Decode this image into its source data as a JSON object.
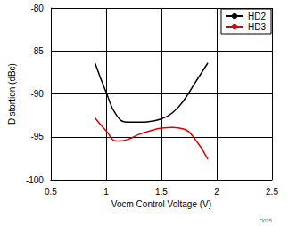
{
  "chart_data": {
    "type": "line",
    "x_label": "Vocm Control Voltage (V)",
    "y_label": "Distortion (dBc)",
    "x": [
      0.9,
      1.0,
      1.1,
      1.2,
      1.3,
      1.4,
      1.5,
      1.6,
      1.7,
      1.8,
      1.92
    ],
    "series": [
      {
        "name": "HD2",
        "color": "#000000",
        "values": [
          -86.4,
          -89.8,
          -92.6,
          -93.3,
          -93.3,
          -93.2,
          -92.9,
          -92.2,
          -90.8,
          -88.8,
          -86.4
        ]
      },
      {
        "name": "HD3",
        "color": "#e00000",
        "values": [
          -92.8,
          -94.3,
          -95.5,
          -95.3,
          -94.7,
          -94.3,
          -94.0,
          -93.9,
          -94.1,
          -95.2,
          -97.6
        ]
      }
    ],
    "xlim": [
      0.5,
      2.5
    ],
    "xticks": [
      0.5,
      1,
      1.5,
      2,
      2.5
    ],
    "ylim": [
      -100,
      -80
    ],
    "yticks": [
      -100,
      -95,
      -90,
      -85,
      -80
    ],
    "grid": true,
    "legend": "top-right",
    "annotations": [
      "D035"
    ]
  }
}
